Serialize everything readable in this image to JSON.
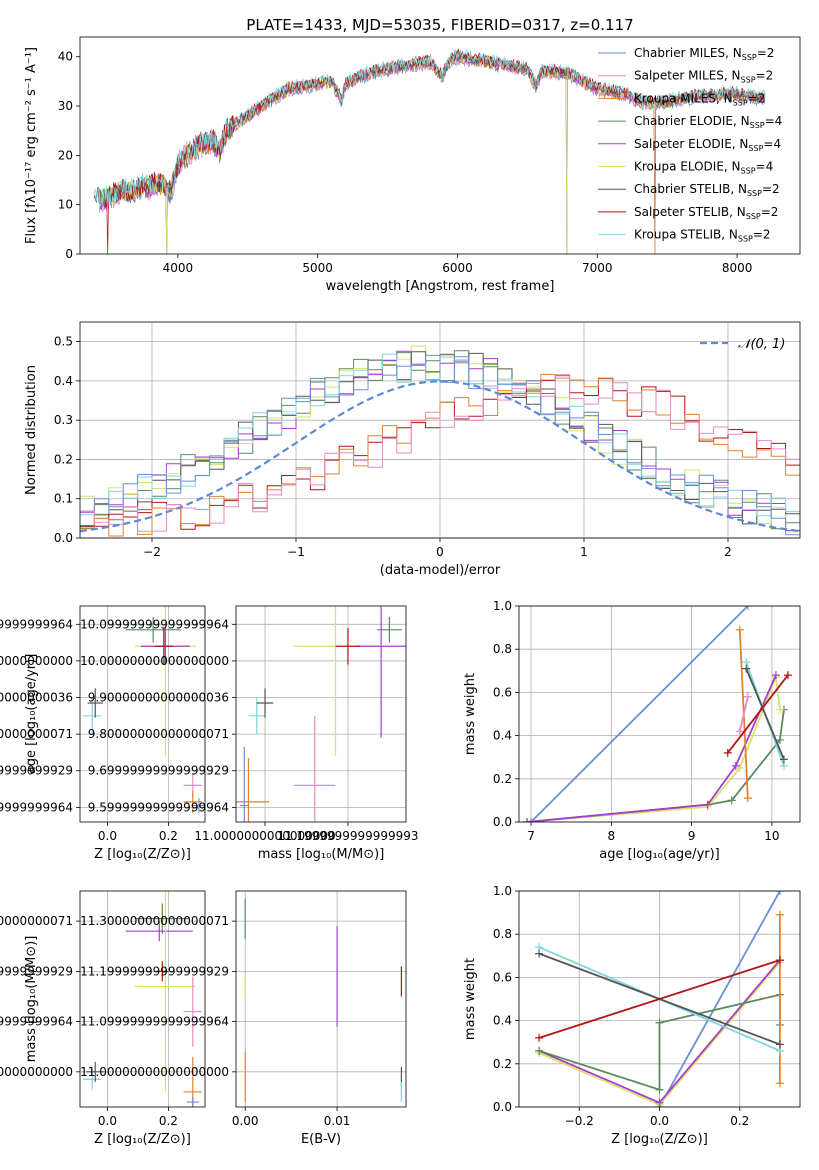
{
  "figure": {
    "title": "PLATE=1433, MJD=53035, FIBERID=0317, z=0.117"
  },
  "chart_data": [
    {
      "type": "line",
      "id": "spectrum",
      "xlabel": "wavelength [Angstrom, rest frame]",
      "ylabel": "Flux [fλ10⁻¹⁷ erg cm⁻² s⁻¹ A⁻¹]",
      "xlim": [
        3300,
        8450
      ],
      "ylim": [
        0,
        44
      ],
      "xticks": [
        4000,
        5000,
        6000,
        7000,
        8000
      ],
      "yticks": [
        0,
        10,
        20,
        30,
        40
      ],
      "legend_position": "top-right",
      "spectrum_anchor_x": [
        3400,
        3450,
        3500,
        3550,
        3600,
        3650,
        3700,
        3750,
        3800,
        3850,
        3900,
        3950,
        4000,
        4050,
        4100,
        4150,
        4200,
        4250,
        4300,
        4350,
        4400,
        4450,
        4500,
        4600,
        4700,
        4800,
        4900,
        5000,
        5100,
        5170,
        5200,
        5300,
        5400,
        5500,
        5600,
        5700,
        5800,
        5890,
        5950,
        6000,
        6100,
        6200,
        6300,
        6400,
        6500,
        6563,
        6600,
        6700,
        6800,
        6900,
        7000,
        7100,
        7200,
        7300,
        7400,
        7500,
        7600,
        7700,
        7800,
        7900,
        8000,
        8100,
        8200
      ],
      "spectrum_anchor_y": [
        12.0,
        11.0,
        11.5,
        12.0,
        13.0,
        12.5,
        13.0,
        14.0,
        13.5,
        14.5,
        14.0,
        12.5,
        18.0,
        20.0,
        21.0,
        22.0,
        22.5,
        23.0,
        21.0,
        25.0,
        26.0,
        27.0,
        28.0,
        30.0,
        32.0,
        33.5,
        34.0,
        34.5,
        35.0,
        31.0,
        34.5,
        36.0,
        37.0,
        37.5,
        38.0,
        38.5,
        39.0,
        36.0,
        39.5,
        40.0,
        39.5,
        39.0,
        38.5,
        38.0,
        37.5,
        34.0,
        37.0,
        37.0,
        36.5,
        35.0,
        33.5,
        33.0,
        32.5,
        31.0,
        30.5,
        31.0,
        31.5,
        32.0,
        32.0,
        32.5,
        32.5,
        32.0,
        31.5
      ],
      "series": [
        {
          "name": "Chabrier MILES, N$_{SSP}$=2",
          "label": "Chabrier MILES, N",
          "sub": "SSP",
          "suffix": "=2",
          "color": "#6a8fd6",
          "drop_to_zero_at": [
            7410
          ]
        },
        {
          "name": "Salpeter MILES, N$_{SSP}$=2",
          "label": "Salpeter MILES, N",
          "sub": "SSP",
          "suffix": "=2",
          "color": "#e58ac8",
          "drop_to_zero_at": [
            7410
          ]
        },
        {
          "name": "Kroupa MILES, N$_{SSP}$=2",
          "label": "Kroupa MILES, N",
          "sub": "SSP",
          "suffix": "=2",
          "color": "#e08230",
          "drop_to_zero_at": [
            7410
          ]
        },
        {
          "name": "Chabrier ELODIE, N$_{SSP}$=4",
          "label": "Chabrier ELODIE, N",
          "sub": "SSP",
          "suffix": "=4",
          "color": "#5a8a5e",
          "drop_to_zero_at": [
            3920,
            6780
          ]
        },
        {
          "name": "Salpeter ELODIE, N$_{SSP}$=4",
          "label": "Salpeter ELODIE, N",
          "sub": "SSP",
          "suffix": "=4",
          "color": "#a93ccf",
          "drop_to_zero_at": [
            3920,
            6780
          ]
        },
        {
          "name": "Kroupa ELODIE, N$_{SSP}$=4",
          "label": "Kroupa ELODIE, N",
          "sub": "SSP",
          "suffix": "=4",
          "color": "#d8e36a",
          "drop_to_zero_at": [
            3920,
            6780
          ]
        },
        {
          "name": "Chabrier STELIB, N$_{SSP}$=2",
          "label": "Chabrier STELIB, N",
          "sub": "SSP",
          "suffix": "=2",
          "color": "#555555",
          "drop_to_zero_at": []
        },
        {
          "name": "Salpeter STELIB, N$_{SSP}$=2",
          "label": "Salpeter STELIB, N",
          "sub": "SSP",
          "suffix": "=2",
          "color": "#b01515",
          "drop_to_zero_at": [
            3500
          ]
        },
        {
          "name": "Kroupa STELIB, N$_{SSP}$=2",
          "label": "Kroupa STELIB, N",
          "sub": "SSP",
          "suffix": "=2",
          "color": "#7fd6de",
          "drop_to_zero_at": []
        }
      ]
    },
    {
      "type": "line",
      "id": "residual-distribution",
      "xlabel": "(data-model)/error",
      "ylabel": "Normed distribution",
      "xlim": [
        -2.5,
        2.5
      ],
      "ylim": [
        0,
        0.55
      ],
      "xticks": [
        -2,
        -1,
        0,
        1,
        2
      ],
      "yticks": [
        0.0,
        0.1,
        0.2,
        0.3,
        0.4,
        0.5
      ],
      "grid": true,
      "legend_position": "top-right",
      "gaussian_label": "𝒩(0, 1)",
      "gaussian_color": "#5b8bd8",
      "histogram_groups": [
        {
          "name": "centered",
          "colors": [
            "#5a8a5e",
            "#a93ccf",
            "#d8e36a",
            "#555555",
            "#7fd6de",
            "#6a8fd6"
          ],
          "center": -0.1,
          "width": 1.15,
          "peak": 0.43
        },
        {
          "name": "shifted",
          "colors": [
            "#b01515",
            "#e08230",
            "#e58ac8"
          ],
          "center": 0.9,
          "width": 1.3,
          "peak": 0.36
        }
      ]
    },
    {
      "type": "scatter",
      "id": "age-vs-metallicity",
      "xlabel": "Z [log₁₀(Z/Z⊙)]",
      "ylabel": "age  [log₁₀(age/yr)]",
      "xlim": [
        -0.09,
        0.32
      ],
      "ylim": [
        9.56,
        10.15
      ],
      "xticks": [
        0.0,
        0.2
      ],
      "yticks": [
        9.6,
        9.7,
        9.8,
        9.9,
        10.0,
        10.1
      ],
      "grid": true,
      "points": [
        {
          "x": -0.05,
          "y": 9.85,
          "ex": 0.03,
          "ey": 0.05,
          "color": "#7fd6de"
        },
        {
          "x": -0.04,
          "y": 9.885,
          "ex": 0.025,
          "ey": 0.04,
          "color": "#555555"
        },
        {
          "x": 0.15,
          "y": 10.085,
          "ex": 0.09,
          "ey": 0.035,
          "color": "#5a8a5e"
        },
        {
          "x": 0.19,
          "y": 10.04,
          "ex": 0.1,
          "ey": 0.3,
          "color": "#d8e36a"
        },
        {
          "x": 0.19,
          "y": 10.04,
          "ex": 0.08,
          "ey": 0.05,
          "color": "#a93ccf"
        },
        {
          "x": 0.185,
          "y": 10.04,
          "ex": 0.03,
          "ey": 0.05,
          "color": "#b01515"
        },
        {
          "x": 0.28,
          "y": 9.66,
          "ex": 0.03,
          "ey": 0.03,
          "color": "#e58ac8"
        },
        {
          "x": 0.28,
          "y": 9.615,
          "ex": 0.03,
          "ey": 0.03,
          "color": "#e08230"
        },
        {
          "x": 0.3,
          "y": 9.605,
          "ex": 0.02,
          "ey": 0.02,
          "color": "#6a8fd6"
        }
      ]
    },
    {
      "type": "scatter",
      "id": "age-vs-mass",
      "xlabel": "mass [log₁₀(M/M⊙)]",
      "ylabel": "",
      "xlim": [
        10.93,
        11.34
      ],
      "ylim": [
        9.56,
        10.15
      ],
      "xticks": [
        11.0,
        11.2
      ],
      "yticks": [
        9.6,
        9.7,
        9.8,
        9.9,
        10.0,
        10.1
      ],
      "grid": true,
      "points": [
        {
          "x": 10.98,
          "y": 9.85,
          "ex": 0.02,
          "ey": 0.05,
          "color": "#7fd6de"
        },
        {
          "x": 11.0,
          "y": 9.885,
          "ex": 0.02,
          "ey": 0.04,
          "color": "#555555"
        },
        {
          "x": 11.3,
          "y": 10.085,
          "ex": 0.03,
          "ey": 0.035,
          "color": "#5a8a5e"
        },
        {
          "x": 11.17,
          "y": 10.04,
          "ex": 0.1,
          "ey": 0.3,
          "color": "#d8e36a"
        },
        {
          "x": 11.28,
          "y": 10.04,
          "ex": 0.06,
          "ey": 0.25,
          "color": "#a93ccf"
        },
        {
          "x": 11.2,
          "y": 10.04,
          "ex": 0.03,
          "ey": 0.05,
          "color": "#b01515"
        },
        {
          "x": 11.12,
          "y": 9.66,
          "ex": 0.05,
          "ey": 0.19,
          "color": "#e58ac8"
        },
        {
          "x": 10.96,
          "y": 9.615,
          "ex": 0.05,
          "ey": 0.12,
          "color": "#e08230"
        },
        {
          "x": 10.95,
          "y": 9.605,
          "ex": 0.01,
          "ey": 0.16,
          "color": "#6a8fd6"
        }
      ]
    },
    {
      "type": "line",
      "id": "mass-weight-vs-age",
      "xlabel": "age  [log₁₀(age/yr)]",
      "ylabel": "mass weight",
      "xlim": [
        6.85,
        10.35
      ],
      "ylim": [
        0,
        1.0
      ],
      "xticks": [
        7,
        8,
        9,
        10
      ],
      "yticks": [
        0.0,
        0.2,
        0.4,
        0.6,
        0.8,
        1.0
      ],
      "grid": true,
      "series": [
        {
          "color": "#6a8fd6",
          "x": [
            7.0,
            9.7
          ],
          "y": [
            0.0,
            1.0
          ]
        },
        {
          "color": "#5a8a5e",
          "x": [
            6.95,
            9.2,
            9.5,
            10.1,
            10.15
          ],
          "y": [
            0.0,
            0.08,
            0.1,
            0.38,
            0.52
          ]
        },
        {
          "color": "#d8e36a",
          "x": [
            6.95,
            9.2,
            9.6,
            10.05,
            10.1
          ],
          "y": [
            0.0,
            0.07,
            0.25,
            0.67,
            0.52
          ]
        },
        {
          "color": "#a93ccf",
          "x": [
            6.95,
            9.2,
            9.55,
            10.05
          ],
          "y": [
            0.0,
            0.08,
            0.26,
            0.68
          ]
        },
        {
          "color": "#e08230",
          "x": [
            9.6,
            9.7
          ],
          "y": [
            0.89,
            0.11
          ]
        },
        {
          "color": "#e58ac8",
          "x": [
            9.6,
            9.7
          ],
          "y": [
            0.42,
            0.58
          ]
        },
        {
          "color": "#7fd6de",
          "x": [
            9.68,
            10.15
          ],
          "y": [
            0.74,
            0.26
          ]
        },
        {
          "color": "#555555",
          "x": [
            9.68,
            10.15
          ],
          "y": [
            0.71,
            0.29
          ]
        },
        {
          "color": "#b01515",
          "x": [
            9.45,
            10.2
          ],
          "y": [
            0.32,
            0.68
          ]
        }
      ]
    },
    {
      "type": "scatter",
      "id": "mass-vs-metallicity",
      "xlabel": "Z [log₁₀(Z/Z⊙)]",
      "ylabel": "mass [log₁₀(M/M⊙)]",
      "xlim": [
        -0.09,
        0.32
      ],
      "ylim": [
        10.93,
        11.36
      ],
      "xticks": [
        0.0,
        0.2
      ],
      "yticks": [
        11.0,
        11.1,
        11.2,
        11.3
      ],
      "grid": true,
      "points": [
        {
          "x": -0.05,
          "y": 10.985,
          "ex": 0.03,
          "ey": 0.02,
          "color": "#7fd6de"
        },
        {
          "x": -0.04,
          "y": 11.0,
          "ex": 0.03,
          "ey": 0.02,
          "color": "#555555"
        },
        {
          "x": 0.18,
          "y": 11.305,
          "ex": 0.09,
          "ey": 0.03,
          "color": "#5a8a5e"
        },
        {
          "x": 0.17,
          "y": 11.28,
          "ex": 0.11,
          "ey": 0.02,
          "color": "#a93ccf"
        },
        {
          "x": 0.19,
          "y": 11.17,
          "ex": 0.1,
          "ey": 0.21,
          "color": "#d8e36a"
        },
        {
          "x": 0.18,
          "y": 11.2,
          "ex": 0.02,
          "ey": 0.02,
          "color": "#b01515"
        },
        {
          "x": 0.28,
          "y": 11.12,
          "ex": 0.03,
          "ey": 0.07,
          "color": "#e58ac8"
        },
        {
          "x": 0.28,
          "y": 10.96,
          "ex": 0.03,
          "ey": 0.07,
          "color": "#e08230"
        },
        {
          "x": 0.28,
          "y": 10.94,
          "ex": 0.02,
          "ey": 0.01,
          "color": "#6a8fd6"
        }
      ]
    },
    {
      "type": "scatter",
      "id": "mass-vs-extinction",
      "xlabel": "E(B-V)",
      "ylabel": "",
      "xlim": [
        -0.001,
        0.0175
      ],
      "ylim": [
        10.93,
        11.36
      ],
      "xticks": [
        0.0,
        0.01
      ],
      "xtick_labels": [
        "0.00",
        "0.01"
      ],
      "yticks": [
        11.0,
        11.1,
        11.2,
        11.3
      ],
      "grid": true,
      "points": [
        {
          "x": 0.0,
          "y": 11.305,
          "ex": 0,
          "ey": 0.04,
          "color": "#5a8a5e"
        },
        {
          "x": 0.0,
          "y": 11.17,
          "ex": 0,
          "ey": 0.02,
          "color": "#d8e36a"
        },
        {
          "x": 0.0,
          "y": 10.99,
          "ex": 0,
          "ey": 0.05,
          "color": "#e08230"
        },
        {
          "x": 0.01,
          "y": 11.19,
          "ex": 0,
          "ey": 0.1,
          "color": "#a93ccf"
        },
        {
          "x": 0.017,
          "y": 11.18,
          "ex": 0,
          "ey": 0.03,
          "color": "#b01515"
        },
        {
          "x": 0.017,
          "y": 10.99,
          "ex": 0,
          "ey": 0.02,
          "color": "#555555"
        },
        {
          "x": 0.017,
          "y": 10.96,
          "ex": 0,
          "ey": 0.02,
          "color": "#7fd6de"
        }
      ]
    },
    {
      "type": "line",
      "id": "mass-weight-vs-metallicity",
      "xlabel": "Z [log₁₀(Z/Z⊙)]",
      "ylabel": "mass weight",
      "xlim": [
        -0.35,
        0.35
      ],
      "ylim": [
        0,
        1.0
      ],
      "xticks": [
        -0.2,
        0.0,
        0.2
      ],
      "yticks": [
        0.0,
        0.2,
        0.4,
        0.6,
        0.8,
        1.0
      ],
      "grid": true,
      "series": [
        {
          "color": "#6a8fd6",
          "x": [
            0.0,
            0.3
          ],
          "y": [
            0.0,
            1.0
          ]
        },
        {
          "color": "#d8e36a",
          "x": [
            -0.3,
            0.0,
            0.3
          ],
          "y": [
            0.25,
            0.01,
            0.67
          ]
        },
        {
          "color": "#a93ccf",
          "x": [
            -0.3,
            0.0,
            0.3
          ],
          "y": [
            0.26,
            0.02,
            0.68
          ]
        },
        {
          "color": "#5a8a5e",
          "x": [
            -0.3,
            0.0,
            0.0,
            0.3,
            0.3
          ],
          "y": [
            0.26,
            0.08,
            0.39,
            0.52,
            0.38
          ]
        },
        {
          "color": "#e08230",
          "x": [
            0.3,
            0.3
          ],
          "y": [
            0.89,
            0.11
          ]
        },
        {
          "color": "#7fd6de",
          "x": [
            -0.3,
            0.3
          ],
          "y": [
            0.74,
            0.26
          ]
        },
        {
          "color": "#555555",
          "x": [
            -0.3,
            0.3
          ],
          "y": [
            0.71,
            0.29
          ]
        },
        {
          "color": "#b01515",
          "x": [
            -0.3,
            0.3
          ],
          "y": [
            0.32,
            0.68
          ]
        }
      ]
    }
  ]
}
